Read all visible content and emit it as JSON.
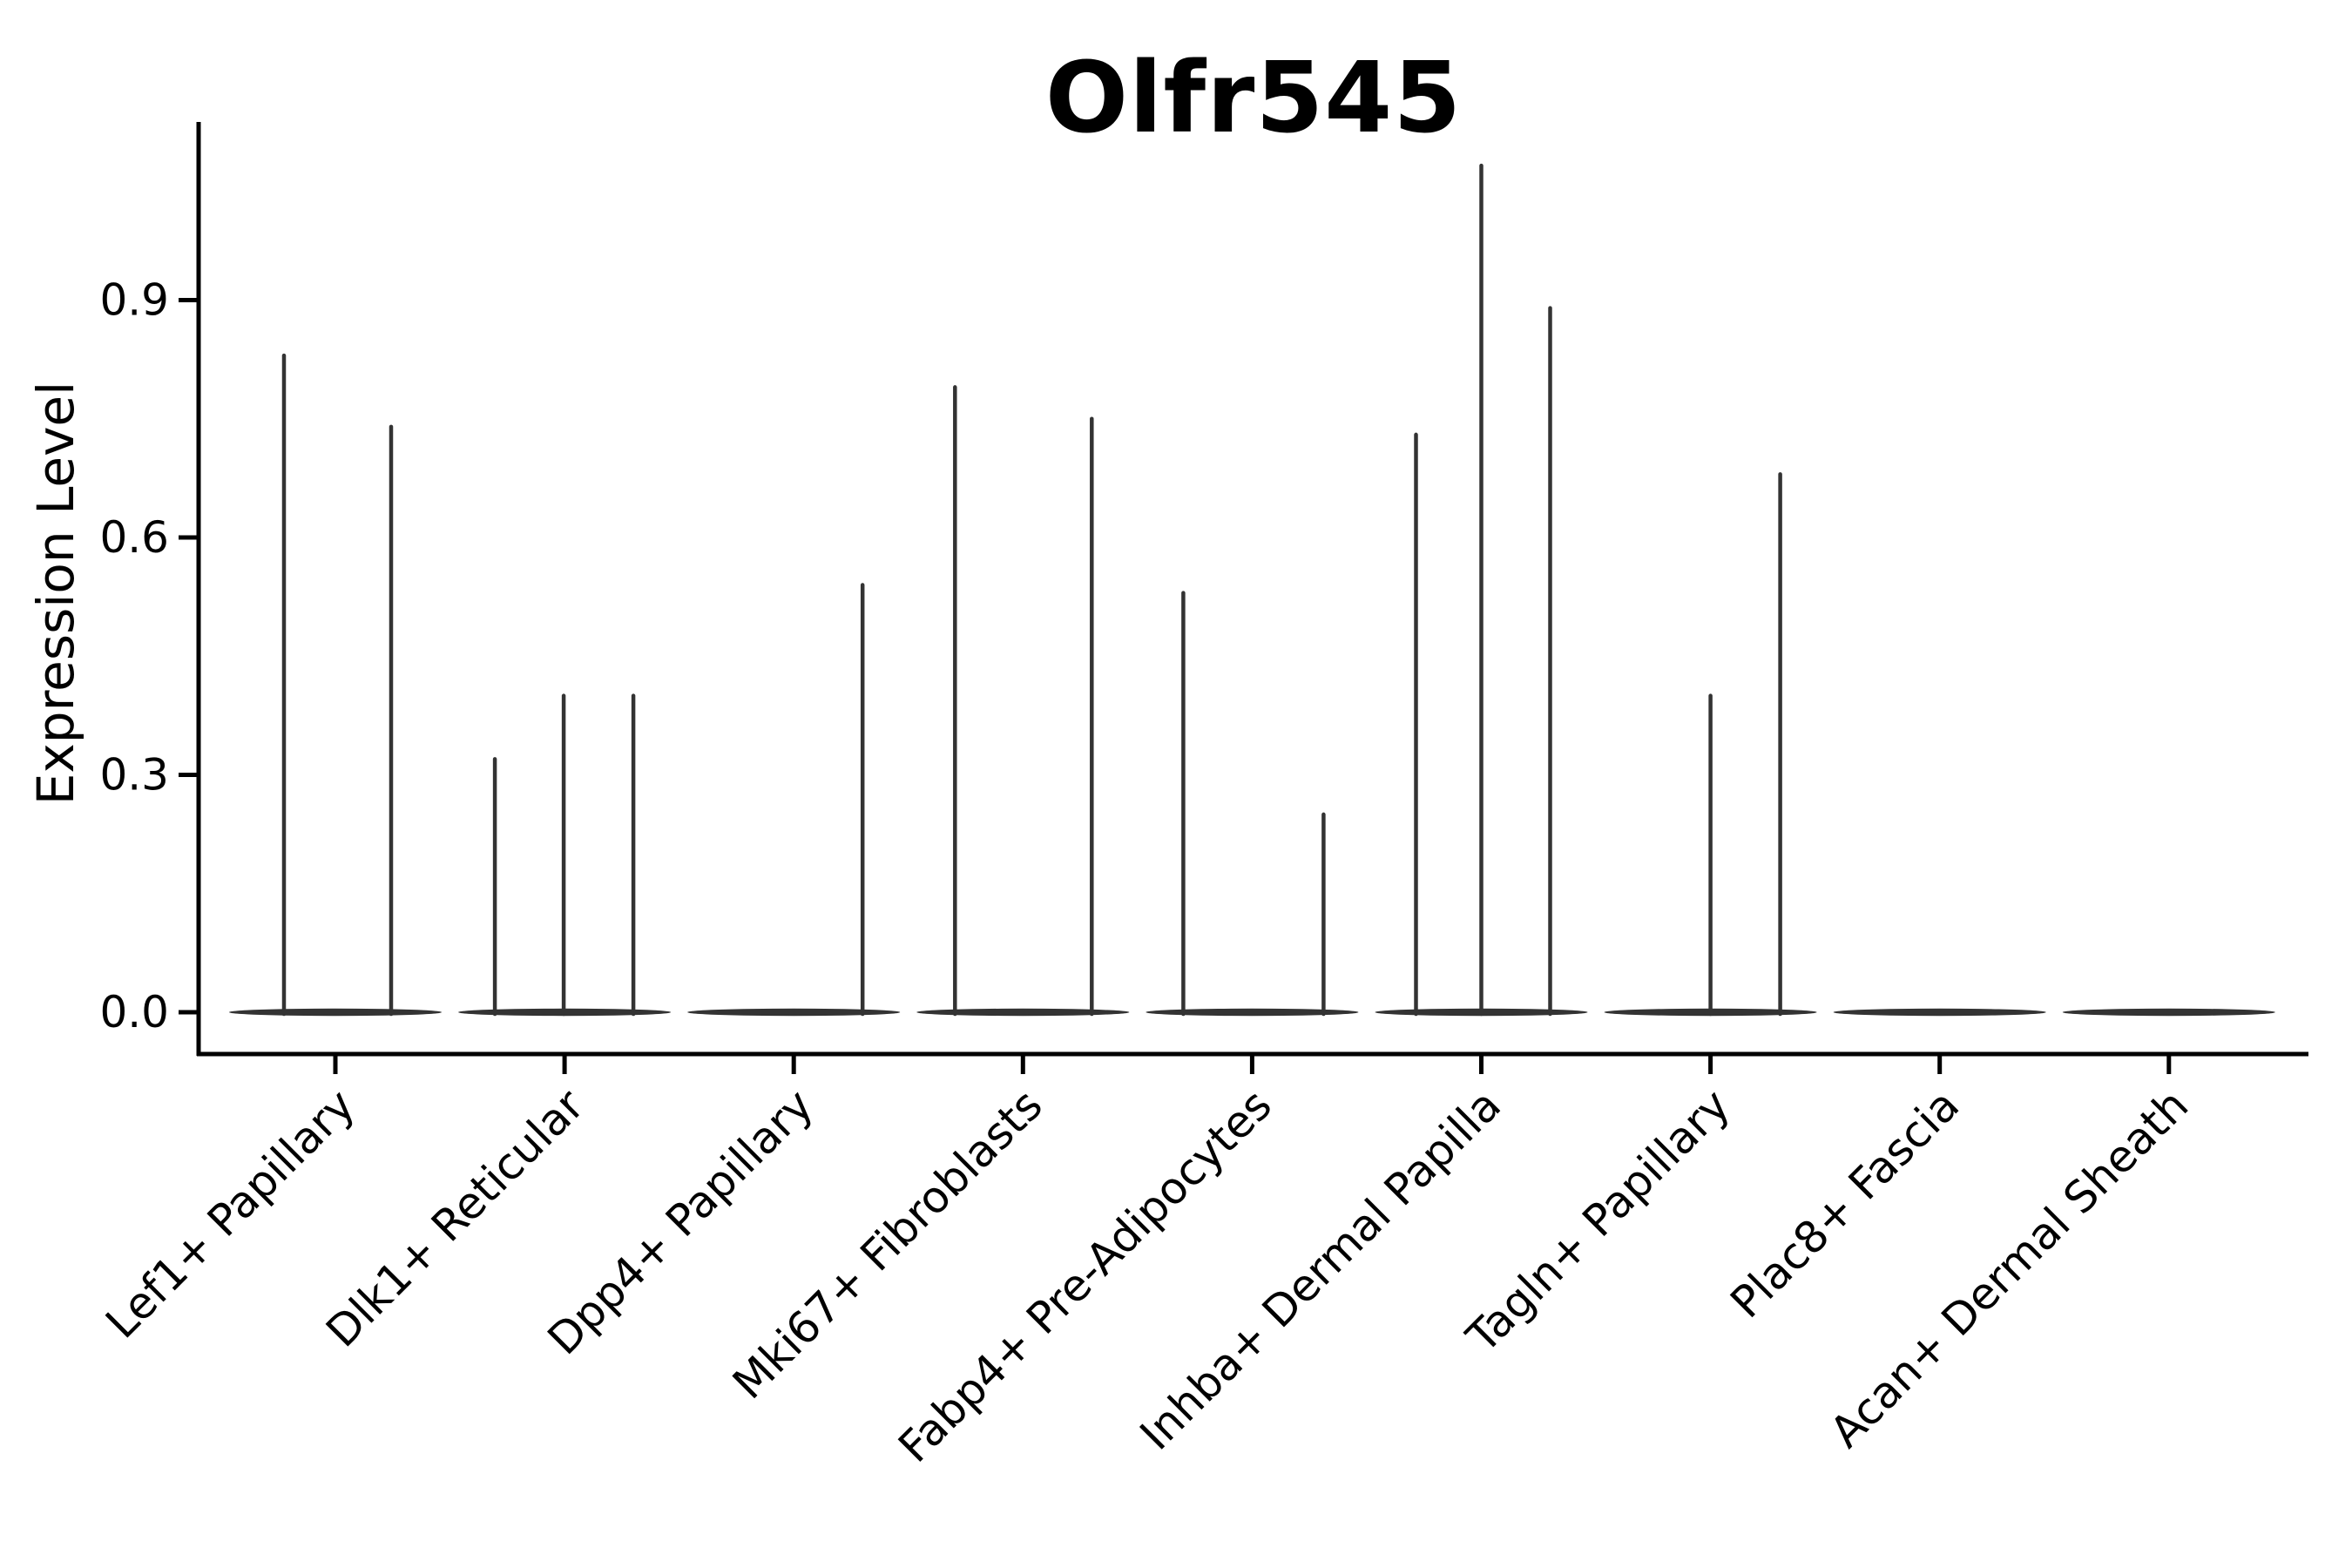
{
  "title": "Olfr545",
  "chart_data": {
    "type": "violin",
    "title": "Olfr545",
    "ylabel": "Expression Level",
    "xlabel": "",
    "grid": false,
    "legend": "none",
    "ylim": [
      0,
      1.13
    ],
    "ytick_labels": [
      "0.0",
      "0.3",
      "0.6",
      "0.9"
    ],
    "ytick_values": [
      0.0,
      0.3,
      0.6,
      0.9
    ],
    "categories": [
      "Lef1+ Papillary",
      "Dlk1+ Reticular",
      "Dpp4+ Papillary",
      "Mki67+ Fibroblasts",
      "Fabp4+ Pre-Adipocytes",
      "Inhba+ Dermal Papilla",
      "Tagln+ Papillary",
      "Plac8+ Fascia",
      "Acan+ Dermal Sheath"
    ],
    "series": [
      {
        "category": "Lef1+ Papillary",
        "zero_baseline": true,
        "spikes": [
          {
            "value": 0.83,
            "x_offset": -59
          },
          {
            "value": 0.74,
            "x_offset": 64
          }
        ]
      },
      {
        "category": "Dlk1+ Reticular",
        "zero_baseline": true,
        "spikes": [
          {
            "value": 0.32,
            "x_offset": -80
          },
          {
            "value": 0.4,
            "x_offset": -1
          },
          {
            "value": 0.4,
            "x_offset": 79
          }
        ]
      },
      {
        "category": "Dpp4+ Papillary",
        "zero_baseline": true,
        "spikes": [
          {
            "value": 0.54,
            "x_offset": 79
          }
        ]
      },
      {
        "category": "Mki67+ Fibroblasts",
        "zero_baseline": true,
        "spikes": [
          {
            "value": 0.79,
            "x_offset": -78
          },
          {
            "value": 0.75,
            "x_offset": 79
          }
        ]
      },
      {
        "category": "Fabp4+ Pre-Adipocytes",
        "zero_baseline": true,
        "spikes": [
          {
            "value": 0.53,
            "x_offset": -79
          },
          {
            "value": 0.25,
            "x_offset": 82
          }
        ]
      },
      {
        "category": "Inhba+ Dermal Papilla",
        "zero_baseline": true,
        "spikes": [
          {
            "value": 0.73,
            "x_offset": -75
          },
          {
            "value": 1.07,
            "x_offset": 0
          },
          {
            "value": 0.89,
            "x_offset": 79
          }
        ]
      },
      {
        "category": "Tagln+ Papillary",
        "zero_baseline": true,
        "spikes": [
          {
            "value": 0.4,
            "x_offset": 0
          },
          {
            "value": 0.68,
            "x_offset": 80
          }
        ]
      },
      {
        "category": "Plac8+ Fascia",
        "zero_baseline": true,
        "spikes": []
      },
      {
        "category": "Acan+ Dermal Sheath",
        "zero_baseline": true,
        "spikes": []
      }
    ],
    "colors": {
      "violin": "#333333",
      "axis": "#000000",
      "text": "#000000",
      "background": "#ffffff"
    }
  }
}
